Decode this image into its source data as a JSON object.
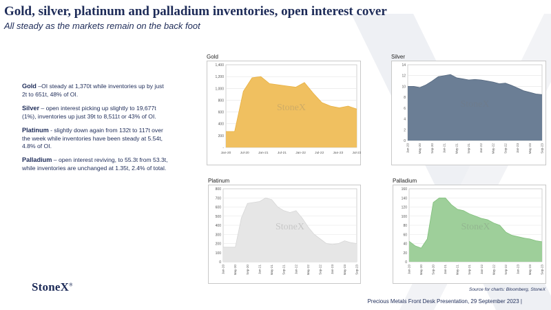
{
  "header": {
    "title": "Gold, silver, platinum and palladium inventories, open interest cover",
    "subtitle": "All steady as the markets remain on the back foot"
  },
  "bullets": [
    {
      "head": "Gold",
      "text": " –OI steady at 1,370t while inventories up by just 2t to 651t, 48% of OI."
    },
    {
      "head": "Silver",
      "text": " – open interest picking up slightly to 19,677t (1%), inventories up just 39t to 8,511t or 43% of OI."
    },
    {
      "head": "Platinum",
      "text": " - slightly down again from 132t to 117t over the week while inventories have been steady at 5.54t, 4.8% of OI."
    },
    {
      "head": "Palladium",
      "text": " – open interest reviving, to 55.3t from 53.3t, while inventories are unchanged at 1.35t, 2.4% of total."
    }
  ],
  "logo": {
    "text": "StoneX",
    "mark": "®"
  },
  "watermark": "StoneX",
  "source": "Source for charts: Bloomberg, StoneX",
  "footer": "Precious Metals Front Desk Presentation, 29 September 2023 |",
  "colors": {
    "gold": "#f0c060",
    "gold_line": "#e8b040",
    "silver": "#6b7e95",
    "silver_line": "#55687f",
    "platinum": "#e6e6e6",
    "platinum_line": "#d6d6d6",
    "palladium": "#9ecf9a",
    "palladium_line": "#7fbf7a"
  },
  "chart_data": [
    {
      "type": "area",
      "title": "Gold",
      "x": [
        "Jan-20",
        "Apr-20",
        "Jul-20",
        "Oct-20",
        "Jan-21",
        "Apr-21",
        "Jul-21",
        "Oct-21",
        "Jan-22",
        "Apr-22",
        "Jul-22",
        "Oct-22",
        "Jan-23",
        "Apr-23",
        "Jul-23",
        "Sep-23"
      ],
      "values": [
        270,
        270,
        950,
        1180,
        1200,
        1080,
        1060,
        1040,
        1020,
        1100,
        920,
        760,
        700,
        670,
        700,
        651
      ],
      "x_ticks": [
        "Jan-20",
        "Jul-20",
        "Jan-21",
        "Jul-21",
        "Jan-22",
        "Jul-22",
        "Jan-23",
        "Jul-23"
      ],
      "y_ticks": [
        "-",
        "200",
        "400",
        "600",
        "800",
        "1,000",
        "1,200",
        "1,400"
      ],
      "ylim": [
        0,
        1400
      ]
    },
    {
      "type": "area",
      "title": "Silver",
      "x": [
        "Jan-20",
        "Mar-20",
        "May-20",
        "Jul-20",
        "Sep-20",
        "Nov-20",
        "Jan-21",
        "Mar-21",
        "May-21",
        "Jul-21",
        "Sep-21",
        "Nov-21",
        "Jan-22",
        "Mar-22",
        "May-22",
        "Jul-22",
        "Sep-22",
        "Nov-22",
        "Jan-23",
        "Mar-23",
        "May-23",
        "Jul-23",
        "Sep-23"
      ],
      "values": [
        10.0,
        10.0,
        9.8,
        10.3,
        11.0,
        11.8,
        12.0,
        12.2,
        11.6,
        11.4,
        11.2,
        11.3,
        11.2,
        11.0,
        10.8,
        10.5,
        10.6,
        10.2,
        9.7,
        9.2,
        8.9,
        8.6,
        8.5
      ],
      "x_ticks": [
        "Jan-20",
        "May-20",
        "Sep-20",
        "Jan-21",
        "May-21",
        "Sep-21",
        "Jan-22",
        "May-22",
        "Sep-22",
        "Jan-23",
        "May-23",
        "Sep-23"
      ],
      "y_ticks": [
        "0",
        "2",
        "4",
        "6",
        "8",
        "10",
        "12",
        "14"
      ],
      "ylim": [
        0,
        14
      ]
    },
    {
      "type": "area",
      "title": "Platinum",
      "x": [
        "Jan-20",
        "Mar-20",
        "May-20",
        "Jul-20",
        "Sep-20",
        "Nov-20",
        "Jan-21",
        "Mar-21",
        "May-21",
        "Jul-21",
        "Sep-21",
        "Nov-21",
        "Jan-22",
        "Mar-22",
        "May-22",
        "Jul-22",
        "Sep-22",
        "Nov-22",
        "Jan-23",
        "Mar-23",
        "May-23",
        "Jul-23",
        "Sep-23"
      ],
      "values": [
        160,
        160,
        160,
        480,
        640,
        650,
        660,
        700,
        680,
        600,
        560,
        540,
        560,
        480,
        380,
        300,
        250,
        200,
        190,
        200,
        230,
        210,
        200
      ],
      "x_ticks": [
        "Jan-20",
        "May-20",
        "Sep-20",
        "Jan-21",
        "May-21",
        "Sep-21",
        "Jan-22",
        "May-22",
        "Sep-22",
        "Jan-23",
        "May-23",
        "Sep-23"
      ],
      "y_ticks": [
        "0",
        "100",
        "200",
        "300",
        "400",
        "500",
        "600",
        "700",
        "800"
      ],
      "ylim": [
        0,
        800
      ]
    },
    {
      "type": "area",
      "title": "Palladium",
      "x": [
        "Jan-20",
        "Mar-20",
        "May-20",
        "Jul-20",
        "Sep-20",
        "Nov-20",
        "Jan-21",
        "Mar-21",
        "May-21",
        "Jul-21",
        "Sep-21",
        "Nov-21",
        "Jan-22",
        "Mar-22",
        "May-22",
        "Jul-22",
        "Sep-22",
        "Nov-22",
        "Jan-23",
        "Mar-23",
        "May-23",
        "Jul-23",
        "Sep-23"
      ],
      "values": [
        45,
        35,
        30,
        50,
        130,
        140,
        140,
        125,
        115,
        112,
        105,
        100,
        95,
        92,
        85,
        80,
        65,
        58,
        55,
        52,
        50,
        46,
        44
      ],
      "x_ticks": [
        "Jan-20",
        "May-20",
        "Sep-20",
        "Jan-21",
        "May-21",
        "Sep-21",
        "Jan-22",
        "May-22",
        "Sep-22",
        "Jan-23",
        "May-23",
        "Sep-23"
      ],
      "y_ticks": [
        "0",
        "20",
        "40",
        "60",
        "80",
        "100",
        "120",
        "140",
        "160"
      ],
      "ylim": [
        0,
        160
      ]
    }
  ]
}
